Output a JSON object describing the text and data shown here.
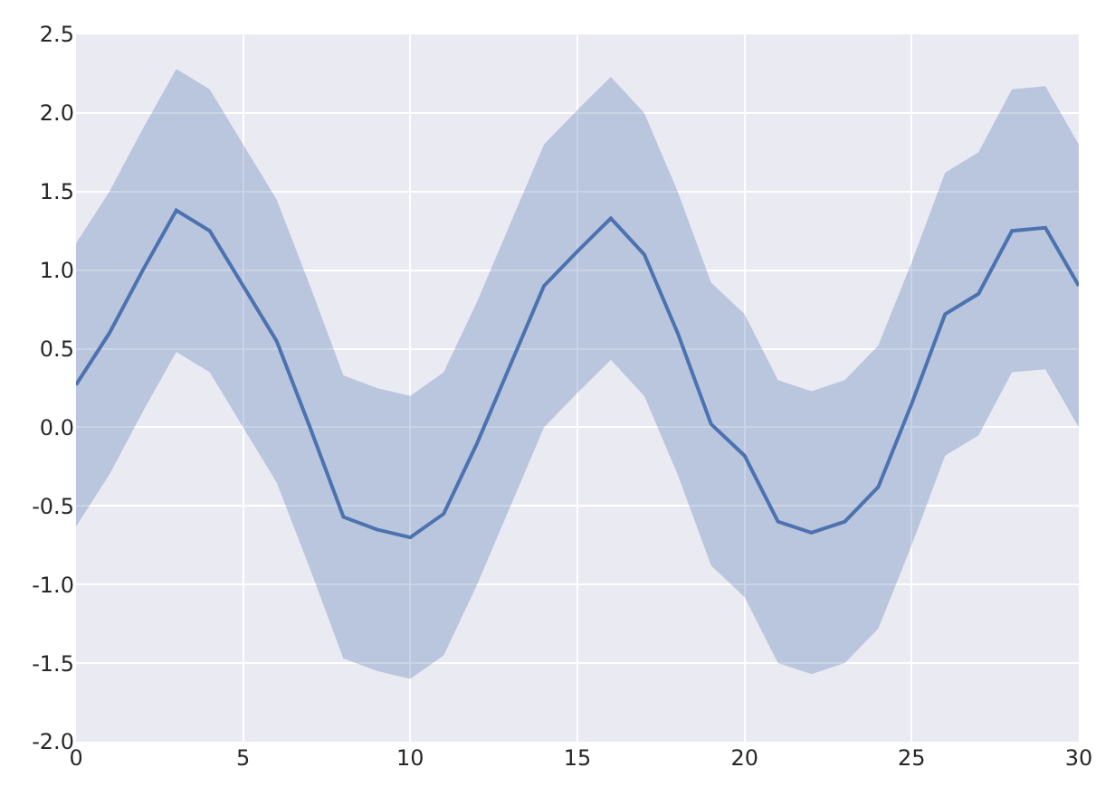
{
  "chart_data": {
    "type": "line",
    "x": [
      0,
      1,
      2,
      3,
      4,
      5,
      6,
      7,
      8,
      9,
      10,
      11,
      12,
      13,
      14,
      15,
      16,
      17,
      18,
      19,
      20,
      21,
      22,
      23,
      24,
      25,
      26,
      27,
      28,
      29,
      30
    ],
    "series": [
      {
        "color": "#4c72b0",
        "values": [
          0.27,
          0.6,
          1.0,
          1.38,
          1.25,
          0.9,
          0.55,
          0.0,
          -0.57,
          -0.65,
          -0.7,
          -0.55,
          -0.1,
          0.4,
          0.9,
          1.12,
          1.33,
          1.1,
          0.6,
          0.02,
          -0.18,
          -0.6,
          -0.67,
          -0.6,
          -0.38,
          0.15,
          0.72,
          0.85,
          1.25,
          1.27,
          0.9
        ],
        "lower": [
          -0.63,
          -0.3,
          0.1,
          0.48,
          0.35,
          0.0,
          -0.35,
          -0.9,
          -1.47,
          -1.55,
          -1.6,
          -1.45,
          -1.0,
          -0.5,
          0.0,
          0.22,
          0.43,
          0.2,
          -0.3,
          -0.88,
          -1.08,
          -1.5,
          -1.57,
          -1.5,
          -1.28,
          -0.75,
          -0.18,
          -0.05,
          0.35,
          0.37,
          0.0
        ],
        "upper": [
          1.17,
          1.5,
          1.9,
          2.28,
          2.15,
          1.8,
          1.45,
          0.9,
          0.33,
          0.25,
          0.2,
          0.35,
          0.8,
          1.3,
          1.8,
          2.02,
          2.23,
          2.0,
          1.5,
          0.92,
          0.72,
          0.3,
          0.23,
          0.3,
          0.52,
          1.05,
          1.62,
          1.75,
          2.15,
          2.17,
          1.8
        ]
      }
    ],
    "xlim": [
      0,
      30
    ],
    "xticks": [
      0,
      5,
      10,
      15,
      20,
      25,
      30
    ],
    "ylim": [
      -2.0,
      2.5
    ],
    "yticks": [
      {
        "value": -2.0,
        "label": "-2.0"
      },
      {
        "value": -1.5,
        "label": "-1.5"
      },
      {
        "value": -1.0,
        "label": "-1.0"
      },
      {
        "value": -0.5,
        "label": "-0.5"
      },
      {
        "value": 0.0,
        "label": "0.0"
      },
      {
        "value": 0.5,
        "label": "0.5"
      },
      {
        "value": 1.0,
        "label": "1.0"
      },
      {
        "value": 1.5,
        "label": "1.5"
      },
      {
        "value": 2.0,
        "label": "2.0"
      },
      {
        "value": 2.5,
        "label": "2.5"
      }
    ],
    "grid": true,
    "marker": "none",
    "line_style": "solid"
  }
}
